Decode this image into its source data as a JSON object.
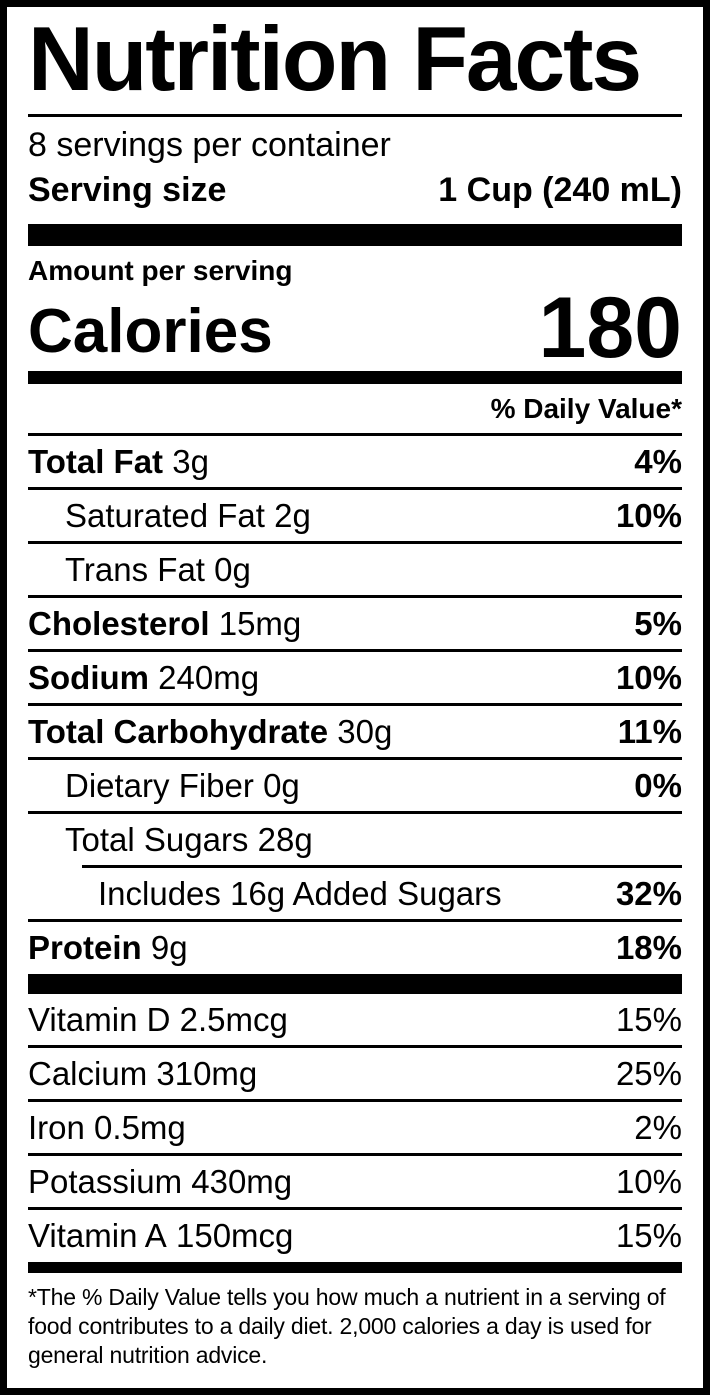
{
  "label": {
    "title": "Nutrition Facts",
    "servings_per_container": "8 servings per container",
    "serving_size_label": "Serving size",
    "serving_size_value": "1 Cup (240 mL)",
    "amount_per_serving": "Amount per serving",
    "calories_label": "Calories",
    "calories_value": "180",
    "daily_value_header": "% Daily Value*",
    "nutrients": [
      {
        "name": "Total Fat",
        "amount": "3g",
        "dv": "4%"
      },
      {
        "name": "Saturated Fat",
        "amount": "2g",
        "dv": "10%"
      },
      {
        "name": "Trans Fat",
        "amount": "0g",
        "dv": ""
      },
      {
        "name": "Cholesterol",
        "amount": "15mg",
        "dv": "5%"
      },
      {
        "name": "Sodium",
        "amount": "240mg",
        "dv": "10%"
      },
      {
        "name": "Total Carbohydrate",
        "amount": "30g",
        "dv": "11%"
      },
      {
        "name": "Dietary Fiber",
        "amount": "0g",
        "dv": "0%"
      },
      {
        "name": "Total Sugars",
        "amount": "28g",
        "dv": ""
      },
      {
        "name": "Includes 16g Added Sugars",
        "amount": "",
        "dv": "32%"
      },
      {
        "name": "Protein",
        "amount": "9g",
        "dv": "18%"
      }
    ],
    "micronutrients": [
      {
        "name": "Vitamin D",
        "amount": "2.5mcg",
        "dv": "15%"
      },
      {
        "name": "Calcium",
        "amount": "310mg",
        "dv": "25%"
      },
      {
        "name": "Iron",
        "amount": "0.5mg",
        "dv": "2%"
      },
      {
        "name": "Potassium",
        "amount": "430mg",
        "dv": "10%"
      },
      {
        "name": "Vitamin A",
        "amount": "150mcg",
        "dv": "15%"
      }
    ],
    "footnote": "*The % Daily Value tells you how much a nutrient in a serving of food contributes to a daily diet. 2,000 calories a day is used for general nutrition advice."
  },
  "colors": {
    "text": "#000000",
    "background": "#ffffff"
  }
}
